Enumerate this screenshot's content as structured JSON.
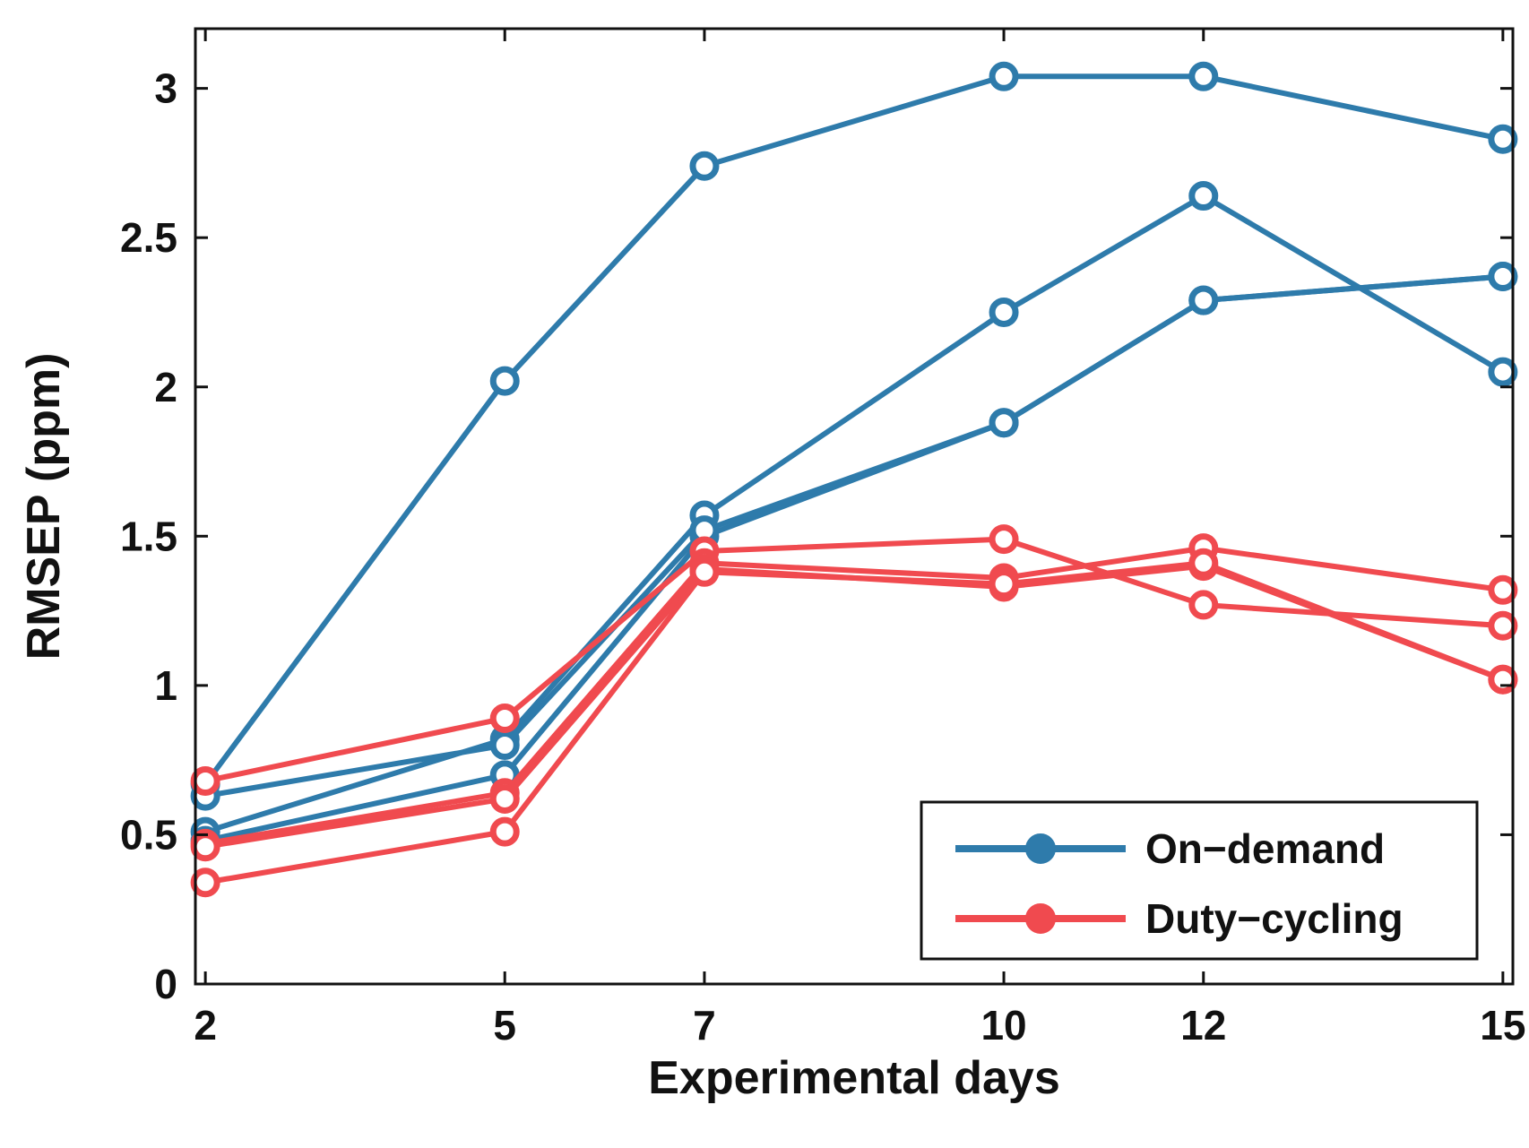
{
  "chart_data": {
    "type": "line",
    "title": "",
    "xlabel": "Experimental days",
    "ylabel": "RMSEP (ppm)",
    "x": [
      2,
      5,
      7,
      10,
      12,
      15
    ],
    "xlim": [
      1.9,
      15.1
    ],
    "ylim": [
      0,
      3.2
    ],
    "xticks": [
      2,
      5,
      7,
      10,
      12,
      15
    ],
    "xtick_labels": [
      "2",
      "5",
      "7",
      "10",
      "12",
      "15"
    ],
    "yticks": [
      0,
      0.5,
      1,
      1.5,
      2,
      2.5,
      3
    ],
    "ytick_labels": [
      "0",
      "0.5",
      "1",
      "1.5",
      "2",
      "2.5",
      "3"
    ],
    "grid": false,
    "legend_position": "bottom-right",
    "legend": [
      {
        "label": "On−demand",
        "color": "#2e7bab"
      },
      {
        "label": "Duty−cycling",
        "color": "#f04a4f"
      }
    ],
    "series": [
      {
        "name": "On-demand 1",
        "group": "On−demand",
        "color": "#2e7bab",
        "values": [
          0.67,
          2.02,
          2.74,
          3.04,
          3.04,
          2.83
        ]
      },
      {
        "name": "On-demand 2",
        "group": "On−demand",
        "color": "#2e7bab",
        "values": [
          0.51,
          0.82,
          1.57,
          2.25,
          2.64,
          2.05
        ]
      },
      {
        "name": "On-demand 3",
        "group": "On−demand",
        "color": "#2e7bab",
        "values": [
          0.48,
          0.7,
          1.5,
          1.88,
          2.29,
          2.37
        ]
      },
      {
        "name": "On-demand 4",
        "group": "On−demand",
        "color": "#2e7bab",
        "values": [
          0.63,
          0.8,
          1.52,
          1.88,
          2.29,
          2.37
        ]
      },
      {
        "name": "Duty-cycling 1",
        "group": "Duty−cycling",
        "color": "#f04a4f",
        "values": [
          0.68,
          0.89,
          1.45,
          1.49,
          1.27,
          1.2
        ]
      },
      {
        "name": "Duty-cycling 2",
        "group": "Duty−cycling",
        "color": "#f04a4f",
        "values": [
          0.47,
          0.64,
          1.41,
          1.36,
          1.46,
          1.32
        ]
      },
      {
        "name": "Duty-cycling 3",
        "group": "Duty−cycling",
        "color": "#f04a4f",
        "values": [
          0.46,
          0.62,
          1.39,
          1.33,
          1.4,
          1.02
        ]
      },
      {
        "name": "Duty-cycling 4",
        "group": "Duty−cycling",
        "color": "#f04a4f",
        "values": [
          0.34,
          0.51,
          1.38,
          1.34,
          1.41,
          1.02
        ]
      }
    ]
  }
}
